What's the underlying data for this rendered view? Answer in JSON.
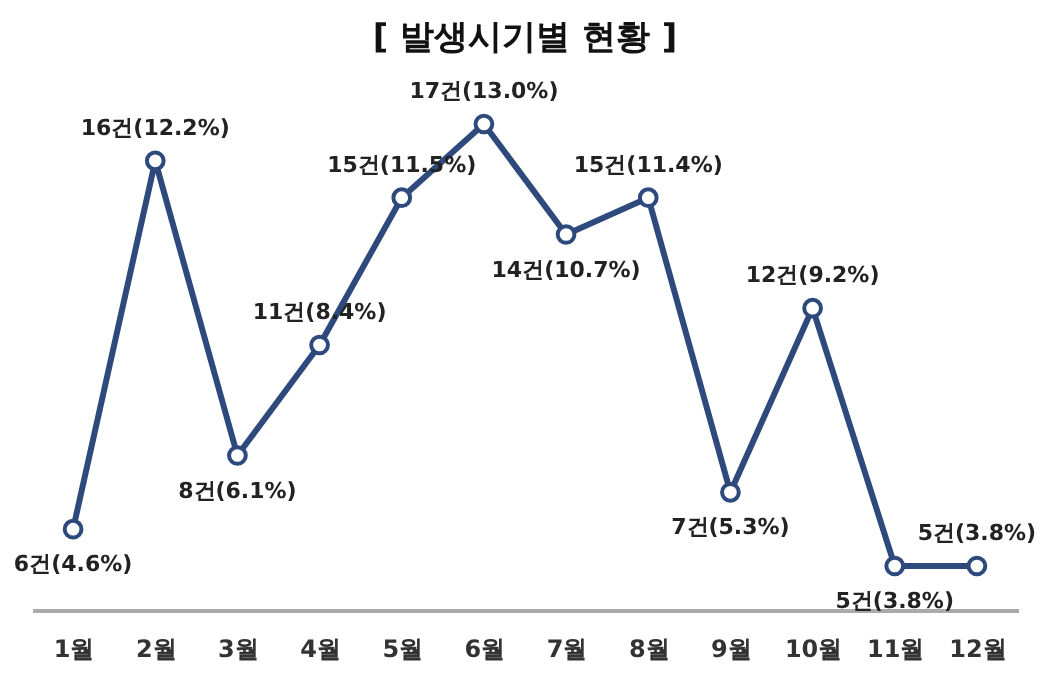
{
  "chart_data": {
    "type": "line",
    "title": "[ 발생시기별 현황 ]",
    "categories": [
      "1월",
      "2월",
      "3월",
      "4월",
      "5월",
      "6월",
      "7월",
      "8월",
      "9월",
      "10월",
      "11월",
      "12월"
    ],
    "series": [
      {
        "color": "#2e4a7d",
        "values": [
          6,
          16,
          8,
          11,
          15,
          17,
          14,
          15,
          7,
          12,
          5,
          5
        ],
        "value_labels": [
          "6건(4.6%)",
          "16건(12.2%)",
          "8건(6.1%)",
          "11건(8.4%)",
          "15건(11.5%)",
          "17건(13.0%)",
          "14건(10.7%)",
          "15건(11.4%)",
          "7건(5.3%)",
          "12건(9.2%)",
          "5건(3.8%)",
          "5건(3.8%)"
        ]
      }
    ],
    "marker": "circle",
    "grid": false,
    "legend": false,
    "tick_labels": "x"
  }
}
